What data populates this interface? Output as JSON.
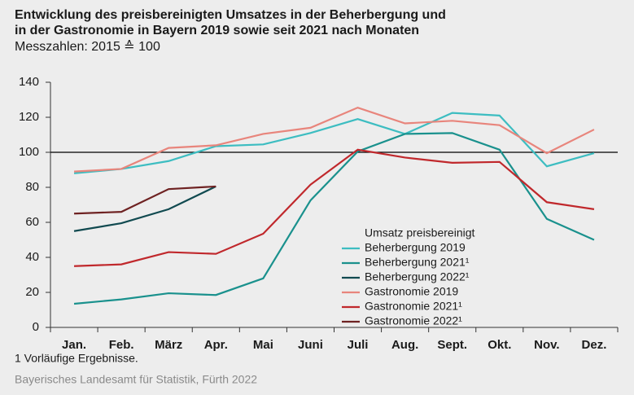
{
  "chart_data": {
    "type": "line",
    "title": [
      "Entwicklung des preisbereinigten Umsatzes in der Beherbergung und",
      "in der Gastronomie in Bayern 2019 sowie seit 2021 nach Monaten"
    ],
    "subtitle": "Messzahlen: 2015 ≙ 100",
    "categories": [
      "Jan.",
      "Feb.",
      "März",
      "Apr.",
      "Mai",
      "Juni",
      "Juli",
      "Aug.",
      "Sept.",
      "Okt.",
      "Nov.",
      "Dez."
    ],
    "ylim": [
      0,
      140
    ],
    "yticks": [
      0,
      20,
      40,
      60,
      80,
      100,
      120,
      140
    ],
    "reference_line": 100,
    "legend_title": "Umsatz preisbereinigt",
    "series": [
      {
        "name": "Beherbergung 2019",
        "color": "#3dbdc1",
        "values": [
          88,
          90.5,
          95,
          103.5,
          104.5,
          111,
          119,
          110.5,
          122.5,
          121,
          92,
          99.5
        ]
      },
      {
        "name": "Beherbergung 2021¹",
        "color": "#1a918d",
        "values": [
          13.5,
          16,
          19.5,
          18.5,
          28,
          72.5,
          100.5,
          110.5,
          111,
          101.5,
          62,
          50
        ]
      },
      {
        "name": "Beherbergung 2022¹",
        "color": "#114a50",
        "values": [
          55,
          59.5,
          67.5,
          80.5,
          null,
          null,
          null,
          null,
          null,
          null,
          null,
          null
        ]
      },
      {
        "name": "Gastronomie 2019",
        "color": "#e8857c",
        "values": [
          89,
          90.5,
          102.5,
          104,
          110.5,
          114,
          125.5,
          116.5,
          118,
          115.5,
          99.5,
          113
        ]
      },
      {
        "name": "Gastronomie 2021¹",
        "color": "#c0282c",
        "values": [
          35,
          36,
          43,
          42,
          53.5,
          81.5,
          101.5,
          97,
          94,
          94.5,
          71.5,
          67.5
        ]
      },
      {
        "name": "Gastronomie 2022¹",
        "color": "#6e2222",
        "values": [
          65,
          66,
          79,
          80.5,
          null,
          null,
          null,
          null,
          null,
          null,
          null,
          null
        ]
      }
    ],
    "footnote": "1  Vorläufige Ergebnisse.",
    "source": "Bayerisches Landesamt für Statistik, Fürth 2022"
  }
}
